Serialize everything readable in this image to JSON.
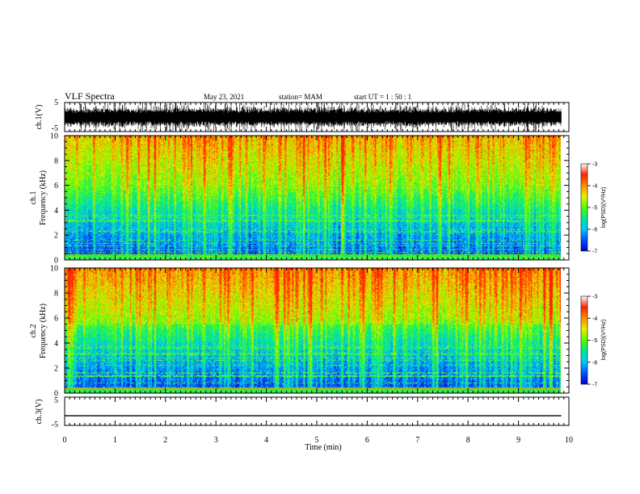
{
  "header": {
    "title": "VLF Spectra",
    "date": "May 23, 2021",
    "station": "station= MAM",
    "start_ut": "start UT =  1 : 50 : 1"
  },
  "chart_data": [
    {
      "type": "line",
      "name": "ch1-waveform",
      "ylabel": "ch.1(V)",
      "ylim": [
        -5,
        5
      ],
      "yticks": [
        "5",
        "-5"
      ],
      "x_range": [
        0,
        10
      ],
      "data_extent_min": 9.85,
      "description_of_values": "dense noisy waveform, amplitude up to about ±5 V"
    },
    {
      "type": "heatmap",
      "name": "ch1-spectrogram",
      "ylabel_line1": "ch.1",
      "ylabel_line2": "Frequency (kHz)",
      "ylim": [
        0,
        10
      ],
      "yticks": [
        "0",
        "2",
        "4",
        "6",
        "8",
        "10"
      ],
      "x_range": [
        0,
        9.85
      ],
      "colorbar": {
        "label": "log(PSD)(V²/Hz)",
        "range": [
          -7,
          -3
        ],
        "ticks": [
          "-3",
          "-4",
          "-5",
          "-6",
          "-7"
        ],
        "colors": [
          "#0000c8",
          "#0050ff",
          "#00c8ff",
          "#00e890",
          "#50ff00",
          "#e8f000",
          "#ff9000",
          "#ff2000",
          "#ffffff"
        ]
      }
    },
    {
      "type": "heatmap",
      "name": "ch2-spectrogram",
      "ylabel_line1": "ch.2",
      "ylabel_line2": "Frequency (kHz)",
      "ylim": [
        0,
        10
      ],
      "yticks": [
        "0",
        "2",
        "4",
        "6",
        "8",
        "10"
      ],
      "x_range": [
        0,
        9.85
      ],
      "colorbar": {
        "label": "log(PSD)(V²/Hz)",
        "range": [
          -7,
          -3
        ],
        "ticks": [
          "-3",
          "-4",
          "-5",
          "-6",
          "-7"
        ],
        "colors": [
          "#0000c8",
          "#0050ff",
          "#00c8ff",
          "#00e890",
          "#50ff00",
          "#e8f000",
          "#ff9000",
          "#ff2000",
          "#ffffff"
        ]
      }
    },
    {
      "type": "line",
      "name": "ch3-waveform",
      "ylabel": "ch.3(V)",
      "ylim": [
        -5,
        5
      ],
      "yticks": [
        "5",
        "-5"
      ],
      "x": [
        0,
        9.85
      ],
      "y": [
        -1.6,
        -1.6
      ],
      "xlabel": "Time (min)",
      "xticks": [
        "0",
        "1",
        "2",
        "3",
        "4",
        "5",
        "6",
        "7",
        "8",
        "9",
        "10"
      ]
    }
  ]
}
